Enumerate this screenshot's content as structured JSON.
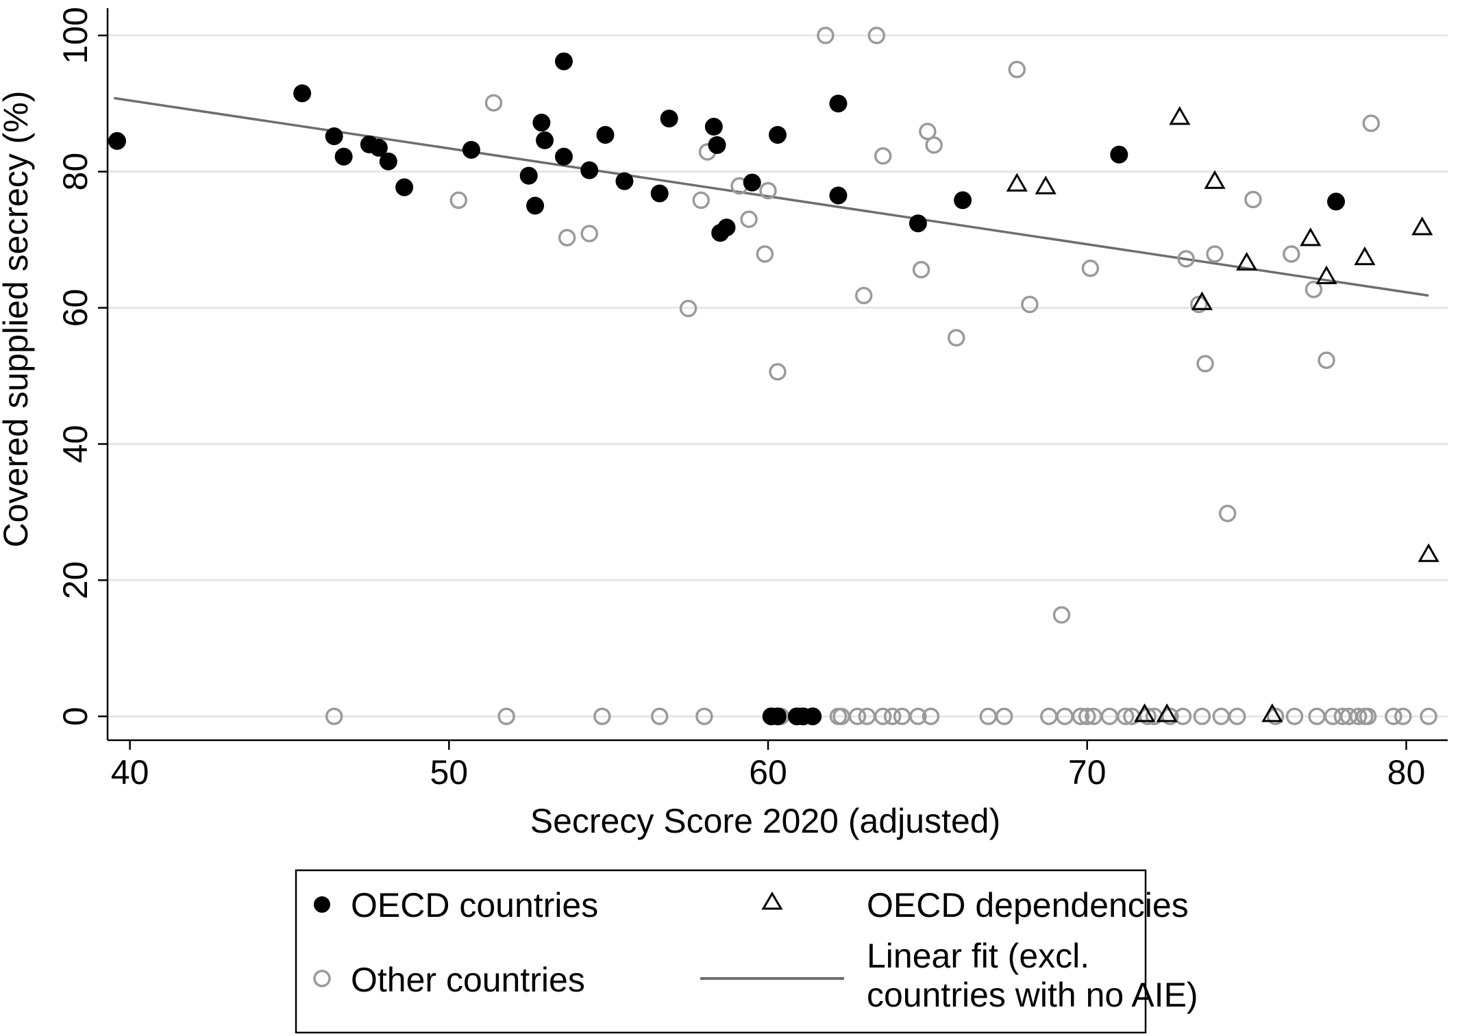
{
  "chart_data": {
    "type": "scatter",
    "xlabel": "Secrecy Score 2020 (adjusted)",
    "ylabel": "Covered supplied secrecy (%)",
    "xlim": [
      39.3,
      81.3
    ],
    "ylim": [
      -3.5,
      104
    ],
    "xticks": [
      40,
      50,
      60,
      70,
      80
    ],
    "yticks": [
      0,
      20,
      40,
      60,
      80,
      100
    ],
    "grid": true,
    "legend_position": "bottom",
    "colors": {
      "oecd": "#000000",
      "other": "#9a9a9a",
      "fit": "#6e6e6e",
      "grid": "#e6e6e6"
    },
    "legend": {
      "oecd_countries": "OECD countries",
      "oecd_dependencies": "OECD dependencies",
      "other_countries": "Other countries",
      "fit_line_1": "Linear fit (excl.",
      "fit_line_2": "countries with no AIE)"
    },
    "series": [
      {
        "name": "OECD countries",
        "marker": "filled-circle",
        "points": [
          [
            39.6,
            84.5
          ],
          [
            45.4,
            91.5
          ],
          [
            46.4,
            85.2
          ],
          [
            46.7,
            82.2
          ],
          [
            47.5,
            84.0
          ],
          [
            47.8,
            83.5
          ],
          [
            48.1,
            81.5
          ],
          [
            48.6,
            77.7
          ],
          [
            50.7,
            83.2
          ],
          [
            52.5,
            79.4
          ],
          [
            52.7,
            75.0
          ],
          [
            52.9,
            87.2
          ],
          [
            53.0,
            84.6
          ],
          [
            53.6,
            96.2
          ],
          [
            53.6,
            82.2
          ],
          [
            54.4,
            80.2
          ],
          [
            54.9,
            85.4
          ],
          [
            55.5,
            78.6
          ],
          [
            56.6,
            76.8
          ],
          [
            56.9,
            87.8
          ],
          [
            58.3,
            86.6
          ],
          [
            58.4,
            83.9
          ],
          [
            58.5,
            71.0
          ],
          [
            58.7,
            71.8
          ],
          [
            59.5,
            78.4
          ],
          [
            60.3,
            85.4
          ],
          [
            62.2,
            90.0
          ],
          [
            62.2,
            76.5
          ],
          [
            64.7,
            72.4
          ],
          [
            66.1,
            75.8
          ],
          [
            71.0,
            82.5
          ],
          [
            77.8,
            75.6
          ],
          [
            60.1,
            0
          ],
          [
            60.3,
            0
          ],
          [
            60.9,
            0
          ],
          [
            61.1,
            0
          ],
          [
            61.4,
            0
          ]
        ]
      },
      {
        "name": "OECD dependencies",
        "marker": "hollow-triangle",
        "points": [
          [
            67.8,
            78.2
          ],
          [
            68.7,
            77.8
          ],
          [
            72.9,
            88.0
          ],
          [
            74.0,
            78.6
          ],
          [
            73.6,
            60.8
          ],
          [
            75.0,
            66.6
          ],
          [
            77.0,
            70.2
          ],
          [
            77.5,
            64.6
          ],
          [
            78.7,
            67.4
          ],
          [
            80.5,
            71.8
          ],
          [
            80.7,
            23.8
          ],
          [
            71.8,
            0.3
          ],
          [
            72.5,
            0.3
          ],
          [
            75.8,
            0.3
          ]
        ]
      },
      {
        "name": "Other countries",
        "marker": "hollow-circle",
        "points": [
          [
            50.3,
            75.8
          ],
          [
            51.4,
            90.1
          ],
          [
            53.7,
            70.3
          ],
          [
            54.4,
            70.9
          ],
          [
            57.5,
            59.9
          ],
          [
            57.9,
            75.8
          ],
          [
            58.1,
            82.9
          ],
          [
            59.1,
            77.9
          ],
          [
            59.4,
            73.0
          ],
          [
            59.9,
            67.9
          ],
          [
            60.0,
            77.2
          ],
          [
            60.3,
            50.6
          ],
          [
            61.8,
            100.0
          ],
          [
            63.0,
            61.8
          ],
          [
            63.4,
            100.0
          ],
          [
            63.6,
            82.3
          ],
          [
            64.8,
            65.6
          ],
          [
            65.0,
            85.9
          ],
          [
            65.2,
            83.9
          ],
          [
            65.9,
            55.6
          ],
          [
            67.8,
            95.0
          ],
          [
            68.2,
            60.5
          ],
          [
            69.2,
            14.9
          ],
          [
            70.1,
            65.8
          ],
          [
            73.1,
            67.2
          ],
          [
            73.5,
            60.5
          ],
          [
            73.7,
            51.8
          ],
          [
            74.0,
            67.9
          ],
          [
            74.4,
            29.8
          ],
          [
            75.2,
            75.9
          ],
          [
            76.4,
            67.9
          ],
          [
            77.1,
            62.7
          ],
          [
            77.5,
            52.3
          ],
          [
            78.9,
            87.1
          ],
          [
            46.4,
            0
          ],
          [
            51.8,
            0
          ],
          [
            54.8,
            0
          ],
          [
            56.6,
            0
          ],
          [
            58.0,
            0
          ],
          [
            60.4,
            0
          ],
          [
            61.0,
            0
          ],
          [
            62.2,
            0
          ],
          [
            62.3,
            0
          ],
          [
            62.8,
            0
          ],
          [
            63.1,
            0
          ],
          [
            63.6,
            0
          ],
          [
            63.9,
            0
          ],
          [
            64.2,
            0
          ],
          [
            64.7,
            0
          ],
          [
            65.1,
            0
          ],
          [
            66.9,
            0
          ],
          [
            67.4,
            0
          ],
          [
            68.8,
            0
          ],
          [
            69.3,
            0
          ],
          [
            69.8,
            0
          ],
          [
            70.0,
            0
          ],
          [
            70.2,
            0
          ],
          [
            70.7,
            0
          ],
          [
            71.2,
            0
          ],
          [
            71.4,
            0
          ],
          [
            71.9,
            0
          ],
          [
            72.1,
            0
          ],
          [
            72.6,
            0
          ],
          [
            73.0,
            0
          ],
          [
            73.6,
            0
          ],
          [
            74.2,
            0
          ],
          [
            74.7,
            0
          ],
          [
            75.9,
            0
          ],
          [
            76.5,
            0
          ],
          [
            77.2,
            0
          ],
          [
            77.7,
            0
          ],
          [
            78.0,
            0
          ],
          [
            78.2,
            0
          ],
          [
            78.5,
            0
          ],
          [
            78.7,
            0
          ],
          [
            78.8,
            0
          ],
          [
            79.6,
            0
          ],
          [
            79.9,
            0
          ],
          [
            80.7,
            0
          ]
        ]
      },
      {
        "name": "Linear fit (excl. countries with no AIE)",
        "marker": "line",
        "points": [
          [
            39.5,
            90.8
          ],
          [
            80.7,
            61.8
          ]
        ]
      }
    ]
  }
}
